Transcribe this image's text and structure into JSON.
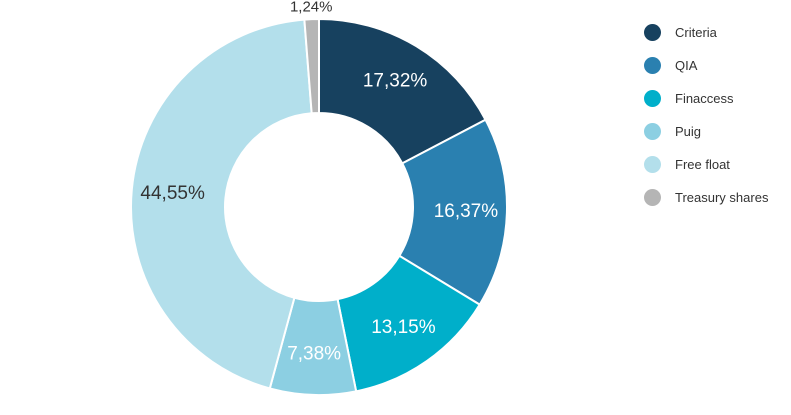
{
  "chart_data": {
    "type": "pie",
    "donut": true,
    "legend_position": "right",
    "categories": [
      "Criteria",
      "QIA",
      "Finaccess",
      "Puig",
      "Free float",
      "Treasury shares"
    ],
    "values": [
      17.32,
      16.37,
      13.15,
      7.38,
      44.55,
      1.24
    ],
    "labels": [
      "17,32%",
      "16,37%",
      "13,15%",
      "7,38%",
      "44,55%",
      "1,24%"
    ],
    "colors": [
      "#17415f",
      "#2a80b0",
      "#00afca",
      "#8ccfe2",
      "#b3dfeb",
      "#b5b5b5"
    ],
    "label_colors": [
      "#ffffff",
      "#ffffff",
      "#ffffff",
      "#ffffff",
      "#333333",
      "#333333"
    ]
  }
}
